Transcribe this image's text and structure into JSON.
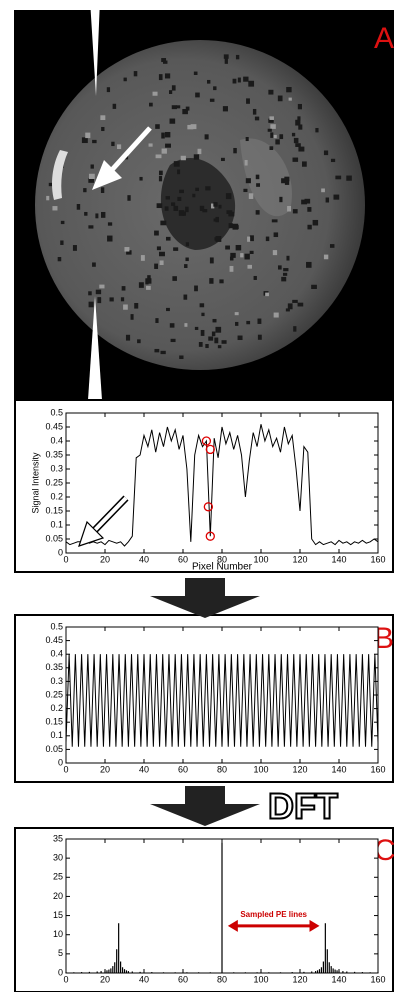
{
  "panel_labels": [
    "A",
    "B",
    "C"
  ],
  "transform_label": "DFT",
  "chart_data": [
    {
      "type": "line",
      "ylabel": "Signal Intensity",
      "xlabel": "Pixel Number",
      "color": "#000000",
      "x": [
        0,
        2,
        4,
        6,
        8,
        10,
        12,
        14,
        16,
        18,
        20,
        22,
        24,
        26,
        28,
        30,
        32,
        34,
        36,
        38,
        40,
        42,
        44,
        46,
        48,
        50,
        52,
        54,
        56,
        58,
        60,
        62,
        64,
        66,
        68,
        70,
        72,
        74,
        76,
        78,
        80,
        82,
        84,
        86,
        88,
        90,
        92,
        94,
        96,
        98,
        100,
        102,
        104,
        106,
        108,
        110,
        112,
        114,
        116,
        118,
        120,
        122,
        124,
        126,
        128,
        130,
        132,
        134,
        136,
        138,
        140,
        142,
        144,
        146,
        148,
        150,
        152,
        154,
        156,
        158,
        160
      ],
      "values": [
        0.04,
        0.03,
        0.035,
        0.04,
        0.04,
        0.045,
        0.035,
        0.04,
        0.035,
        0.04,
        0.03,
        0.045,
        0.04,
        0.035,
        0.04,
        0.025,
        0.04,
        0.06,
        0.34,
        0.35,
        0.42,
        0.38,
        0.44,
        0.36,
        0.43,
        0.38,
        0.45,
        0.4,
        0.44,
        0.37,
        0.42,
        0.3,
        0.04,
        0.35,
        0.42,
        0.38,
        0.4,
        0.06,
        0.41,
        0.34,
        0.45,
        0.39,
        0.43,
        0.37,
        0.42,
        0.35,
        0.2,
        0.33,
        0.43,
        0.38,
        0.46,
        0.4,
        0.44,
        0.38,
        0.41,
        0.36,
        0.45,
        0.39,
        0.42,
        0.3,
        0.15,
        0.38,
        0.36,
        0.05,
        0.03,
        0.04,
        0.03,
        0.035,
        0.04,
        0.03,
        0.045,
        0.035,
        0.04,
        0.03,
        0.04,
        0.035,
        0.045,
        0.035,
        0.04,
        0.05,
        0.04
      ],
      "markers": {
        "x": [
          72,
          74,
          73,
          74
        ],
        "y": [
          0.4,
          0.37,
          0.165,
          0.06
        ],
        "color": "#dd0000"
      },
      "xlim": [
        0,
        160
      ],
      "xticks": [
        0,
        20,
        40,
        60,
        80,
        100,
        120,
        140,
        160
      ],
      "ylim": [
        0,
        0.5
      ],
      "yticks": [
        0,
        0.05,
        0.1,
        0.15,
        0.2,
        0.25,
        0.3,
        0.35,
        0.4,
        0.45,
        0.5
      ]
    },
    {
      "type": "line",
      "color": "#000000",
      "x": [
        0,
        1.6,
        3.2,
        4.8,
        6.4,
        8,
        9.6,
        11.2,
        12.8,
        14.4,
        16,
        17.6,
        19.2,
        20.8,
        22.4,
        24,
        25.6,
        27.2,
        28.8,
        30.4,
        32,
        33.6,
        35.2,
        36.8,
        38.4,
        40,
        41.6,
        43.2,
        44.8,
        46.4,
        48,
        49.6,
        51.2,
        52.8,
        54.4,
        56,
        57.6,
        59.2,
        60.8,
        62.4,
        64,
        65.6,
        67.2,
        68.8,
        70.4,
        72,
        73.6,
        75.2,
        76.8,
        78.4,
        80,
        81.6,
        83.2,
        84.8,
        86.4,
        88,
        89.6,
        91.2,
        92.8,
        94.4,
        96,
        97.6,
        99.2,
        100.8,
        102.4,
        104,
        105.6,
        107.2,
        108.8,
        110.4,
        112,
        113.6,
        115.2,
        116.8,
        118.4,
        120,
        121.6,
        123.2,
        124.8,
        126.4,
        128,
        129.6,
        131.2,
        132.8,
        134.4,
        136,
        137.6,
        139.2,
        140.8,
        142.4,
        144,
        145.6,
        147.2,
        148.8,
        150.4,
        152,
        153.6,
        155.2,
        156.8,
        158.4,
        160
      ],
      "values": [
        0.075,
        0.4,
        0.06,
        0.4,
        0.06,
        0.4,
        0.06,
        0.4,
        0.06,
        0.4,
        0.06,
        0.4,
        0.06,
        0.4,
        0.06,
        0.4,
        0.06,
        0.4,
        0.06,
        0.4,
        0.06,
        0.4,
        0.06,
        0.4,
        0.06,
        0.4,
        0.06,
        0.4,
        0.06,
        0.4,
        0.06,
        0.4,
        0.06,
        0.4,
        0.06,
        0.4,
        0.06,
        0.4,
        0.06,
        0.4,
        0.06,
        0.4,
        0.06,
        0.4,
        0.06,
        0.4,
        0.06,
        0.4,
        0.06,
        0.4,
        0.06,
        0.4,
        0.06,
        0.4,
        0.06,
        0.4,
        0.06,
        0.4,
        0.06,
        0.4,
        0.06,
        0.4,
        0.06,
        0.4,
        0.06,
        0.4,
        0.06,
        0.4,
        0.06,
        0.4,
        0.06,
        0.4,
        0.06,
        0.4,
        0.06,
        0.4,
        0.06,
        0.4,
        0.06,
        0.4,
        0.06,
        0.4,
        0.06,
        0.4,
        0.06,
        0.4,
        0.06,
        0.4,
        0.06,
        0.4,
        0.06,
        0.4,
        0.06,
        0.4,
        0.06,
        0.4,
        0.06,
        0.4,
        0.06,
        0.4,
        0.075
      ],
      "xlim": [
        0,
        160
      ],
      "xticks": [
        0,
        20,
        40,
        60,
        80,
        100,
        120,
        140,
        160
      ],
      "ylim": [
        0,
        0.5
      ],
      "yticks": [
        0,
        0.05,
        0.1,
        0.15,
        0.2,
        0.25,
        0.3,
        0.35,
        0.4,
        0.45,
        0.5
      ]
    },
    {
      "type": "stem",
      "color": "#000000",
      "x": [
        0,
        4,
        8,
        12,
        16,
        18,
        20,
        21,
        22,
        23,
        24,
        25,
        26,
        27,
        28,
        29,
        30,
        31,
        32,
        34,
        38,
        44,
        50,
        56,
        62,
        68,
        74,
        80,
        86,
        92,
        98,
        104,
        110,
        116,
        122,
        126,
        128,
        129,
        130,
        131,
        132,
        133,
        134,
        135,
        136,
        137,
        138,
        139,
        140,
        142,
        144,
        148,
        152,
        156,
        160
      ],
      "values": [
        0.2,
        0.2,
        0.25,
        0.3,
        0.4,
        0.5,
        0.6,
        0.7,
        0.9,
        1.2,
        1.8,
        2.8,
        6.2,
        13,
        3,
        1.5,
        1,
        0.7,
        0.5,
        0.4,
        0.3,
        0.25,
        0.2,
        0.2,
        0.2,
        0.2,
        0.2,
        34,
        0.2,
        0.2,
        0.2,
        0.2,
        0.2,
        0.25,
        0.3,
        0.4,
        0.5,
        0.7,
        1,
        1.5,
        3,
        13,
        6.2,
        2.8,
        1.8,
        1.2,
        0.9,
        0.7,
        0.6,
        0.5,
        0.4,
        0.3,
        0.25,
        0.2,
        0.2
      ],
      "annotation": {
        "text": "Sampled PE lines",
        "x": [
          83,
          130
        ],
        "y": 12.3,
        "color": "#cc0000"
      },
      "xlim": [
        0,
        160
      ],
      "xticks": [
        0,
        20,
        40,
        60,
        80,
        100,
        120,
        140,
        160
      ],
      "ylim": [
        0,
        35
      ],
      "yticks": [
        0,
        5,
        10,
        15,
        20,
        25,
        30,
        35
      ]
    }
  ]
}
